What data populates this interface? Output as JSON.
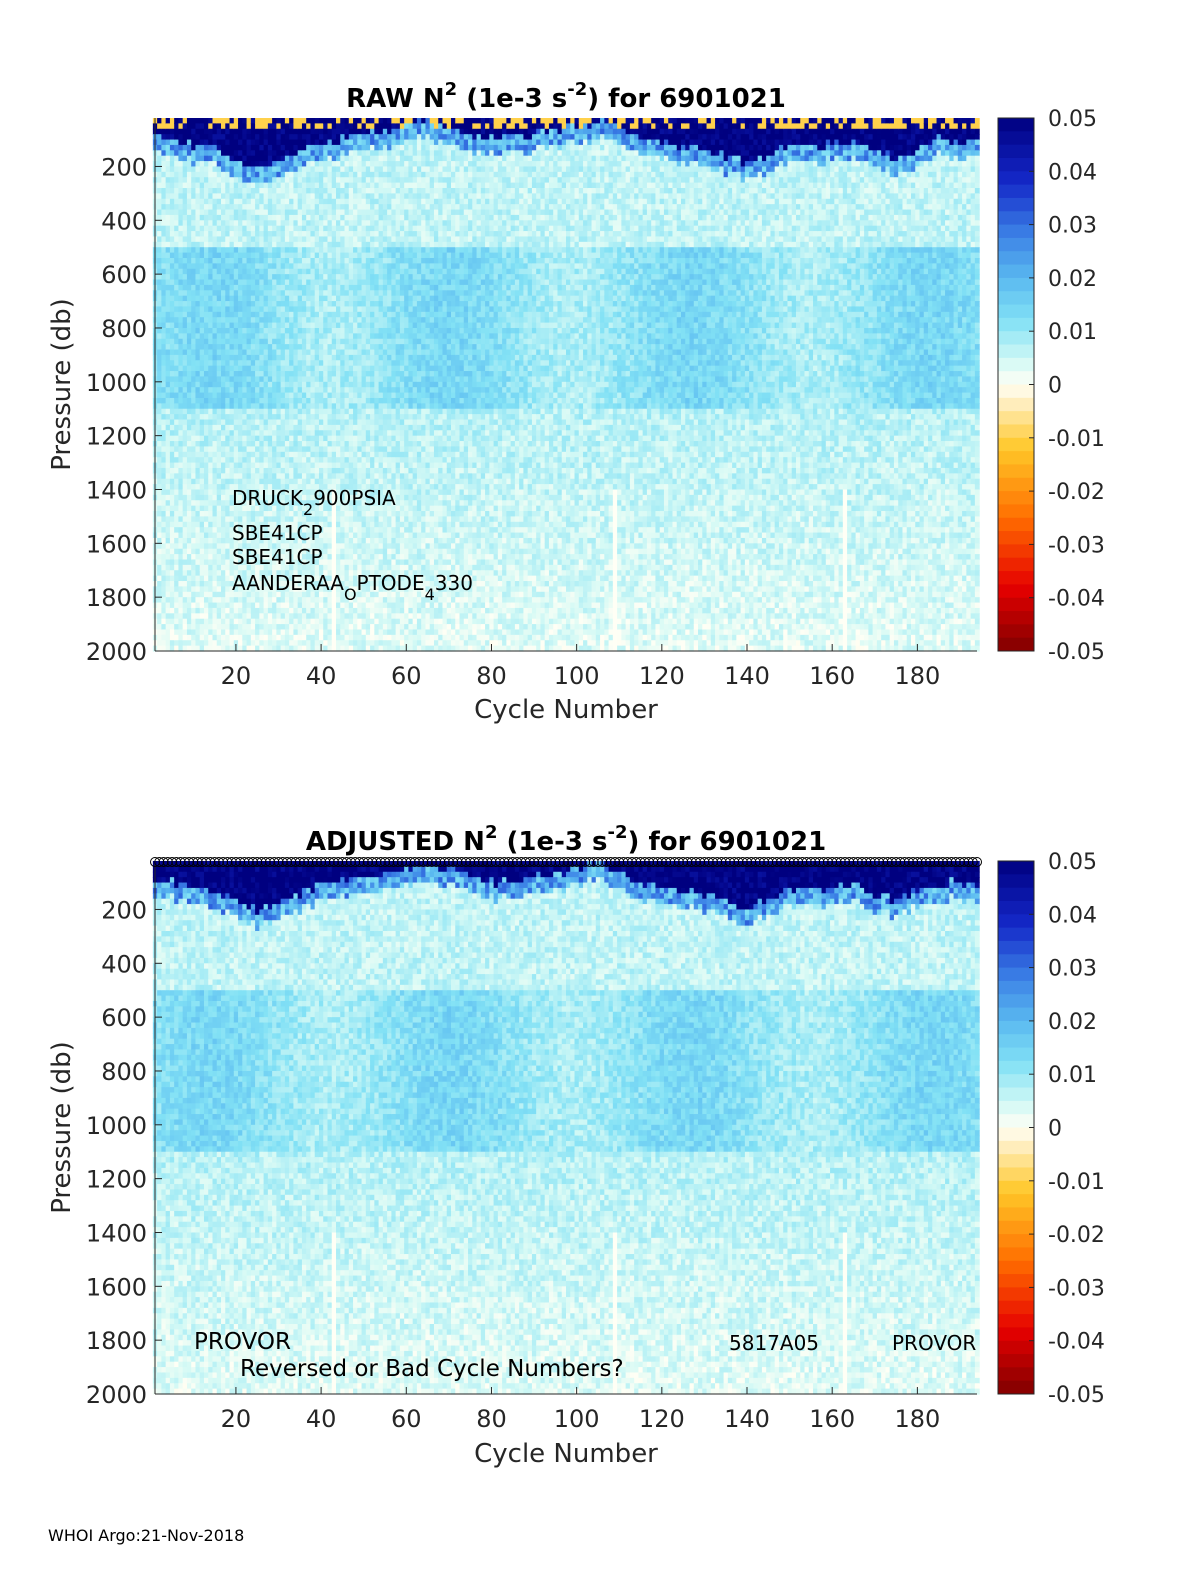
{
  "chart_data": [
    {
      "type": "heatmap",
      "title": {
        "prefix": "RAW N",
        "sup": "2",
        "mid": " (1e-3 s",
        "unit_sup": "-2",
        "suffix": ") for 6901021"
      },
      "xlabel": "Cycle Number",
      "ylabel": "Pressure (db)",
      "xlim": [
        1,
        194
      ],
      "ylim": [
        2000,
        20
      ],
      "xticks": [
        20,
        40,
        60,
        80,
        100,
        120,
        140,
        160,
        180
      ],
      "yticks": [
        200,
        400,
        600,
        800,
        1000,
        1200,
        1400,
        1600,
        1800,
        2000
      ],
      "colorbar": {
        "range": [
          -0.05,
          0.05
        ],
        "ticks": [
          0.05,
          0.04,
          0.03,
          0.02,
          0.01,
          0,
          -0.01,
          -0.02,
          -0.03,
          -0.04,
          -0.05
        ],
        "colormap": "jet-with-white-center"
      },
      "annotations": [
        {
          "text": "DRUCK",
          "sub": "2",
          "rest": "900PSIA"
        },
        {
          "text": "SBE41CP"
        },
        {
          "text": "SBE41CP"
        },
        {
          "text": "AANDERAA",
          "sub": "O",
          "rest": "PTODE",
          "sub2": "4",
          "rest2": "330"
        }
      ],
      "data_description": {
        "surface_layer_value": 0.05,
        "surface_layer_depth_by_cycle": [
          [
            1,
            80
          ],
          [
            15,
            120
          ],
          [
            25,
            200
          ],
          [
            40,
            100
          ],
          [
            55,
            60
          ],
          [
            65,
            20
          ],
          [
            80,
            90
          ],
          [
            95,
            60
          ],
          [
            105,
            20
          ],
          [
            115,
            90
          ],
          [
            130,
            130
          ],
          [
            140,
            180
          ],
          [
            150,
            120
          ],
          [
            165,
            100
          ],
          [
            175,
            160
          ],
          [
            185,
            90
          ],
          [
            194,
            100
          ]
        ],
        "interior_value_range": [
          0.0,
          0.02
        ],
        "missing_columns": [
          43,
          109,
          163
        ]
      }
    },
    {
      "type": "heatmap",
      "title": {
        "prefix": "ADJUSTED N",
        "sup": "2",
        "mid": " (1e-3 s",
        "unit_sup": "-2",
        "suffix": ") for 6901021"
      },
      "xlabel": "Cycle Number",
      "ylabel": "Pressure (db)",
      "xlim": [
        1,
        194
      ],
      "ylim": [
        2000,
        20
      ],
      "xticks": [
        20,
        40,
        60,
        80,
        100,
        120,
        140,
        160,
        180
      ],
      "yticks": [
        200,
        400,
        600,
        800,
        1000,
        1200,
        1400,
        1600,
        1800,
        2000
      ],
      "colorbar": {
        "range": [
          -0.05,
          0.05
        ],
        "ticks": [
          0.05,
          0.04,
          0.03,
          0.02,
          0.01,
          0,
          -0.01,
          -0.02,
          -0.03,
          -0.04,
          -0.05
        ],
        "colormap": "jet-with-white-center"
      },
      "annotations": [
        {
          "text": "PROVOR"
        },
        {
          "text": "Reversed or Bad Cycle Numbers?"
        },
        {
          "text": "5817A05"
        },
        {
          "text": "PROVOR"
        }
      ],
      "markers": {
        "shape": "open-circle",
        "count": 194,
        "at_pressure": 0
      },
      "data_description": {
        "surface_layer_value": 0.05,
        "surface_layer_depth_by_cycle": [
          [
            1,
            80
          ],
          [
            15,
            120
          ],
          [
            25,
            200
          ],
          [
            40,
            100
          ],
          [
            55,
            60
          ],
          [
            65,
            20
          ],
          [
            80,
            90
          ],
          [
            95,
            60
          ],
          [
            105,
            20
          ],
          [
            115,
            90
          ],
          [
            130,
            130
          ],
          [
            140,
            180
          ],
          [
            150,
            120
          ],
          [
            165,
            100
          ],
          [
            175,
            160
          ],
          [
            185,
            90
          ],
          [
            194,
            100
          ]
        ],
        "interior_value_range": [
          0.0,
          0.02
        ],
        "missing_columns": [
          43,
          109,
          163
        ]
      }
    }
  ],
  "footer": "WHOI Argo:21-Nov-2018"
}
